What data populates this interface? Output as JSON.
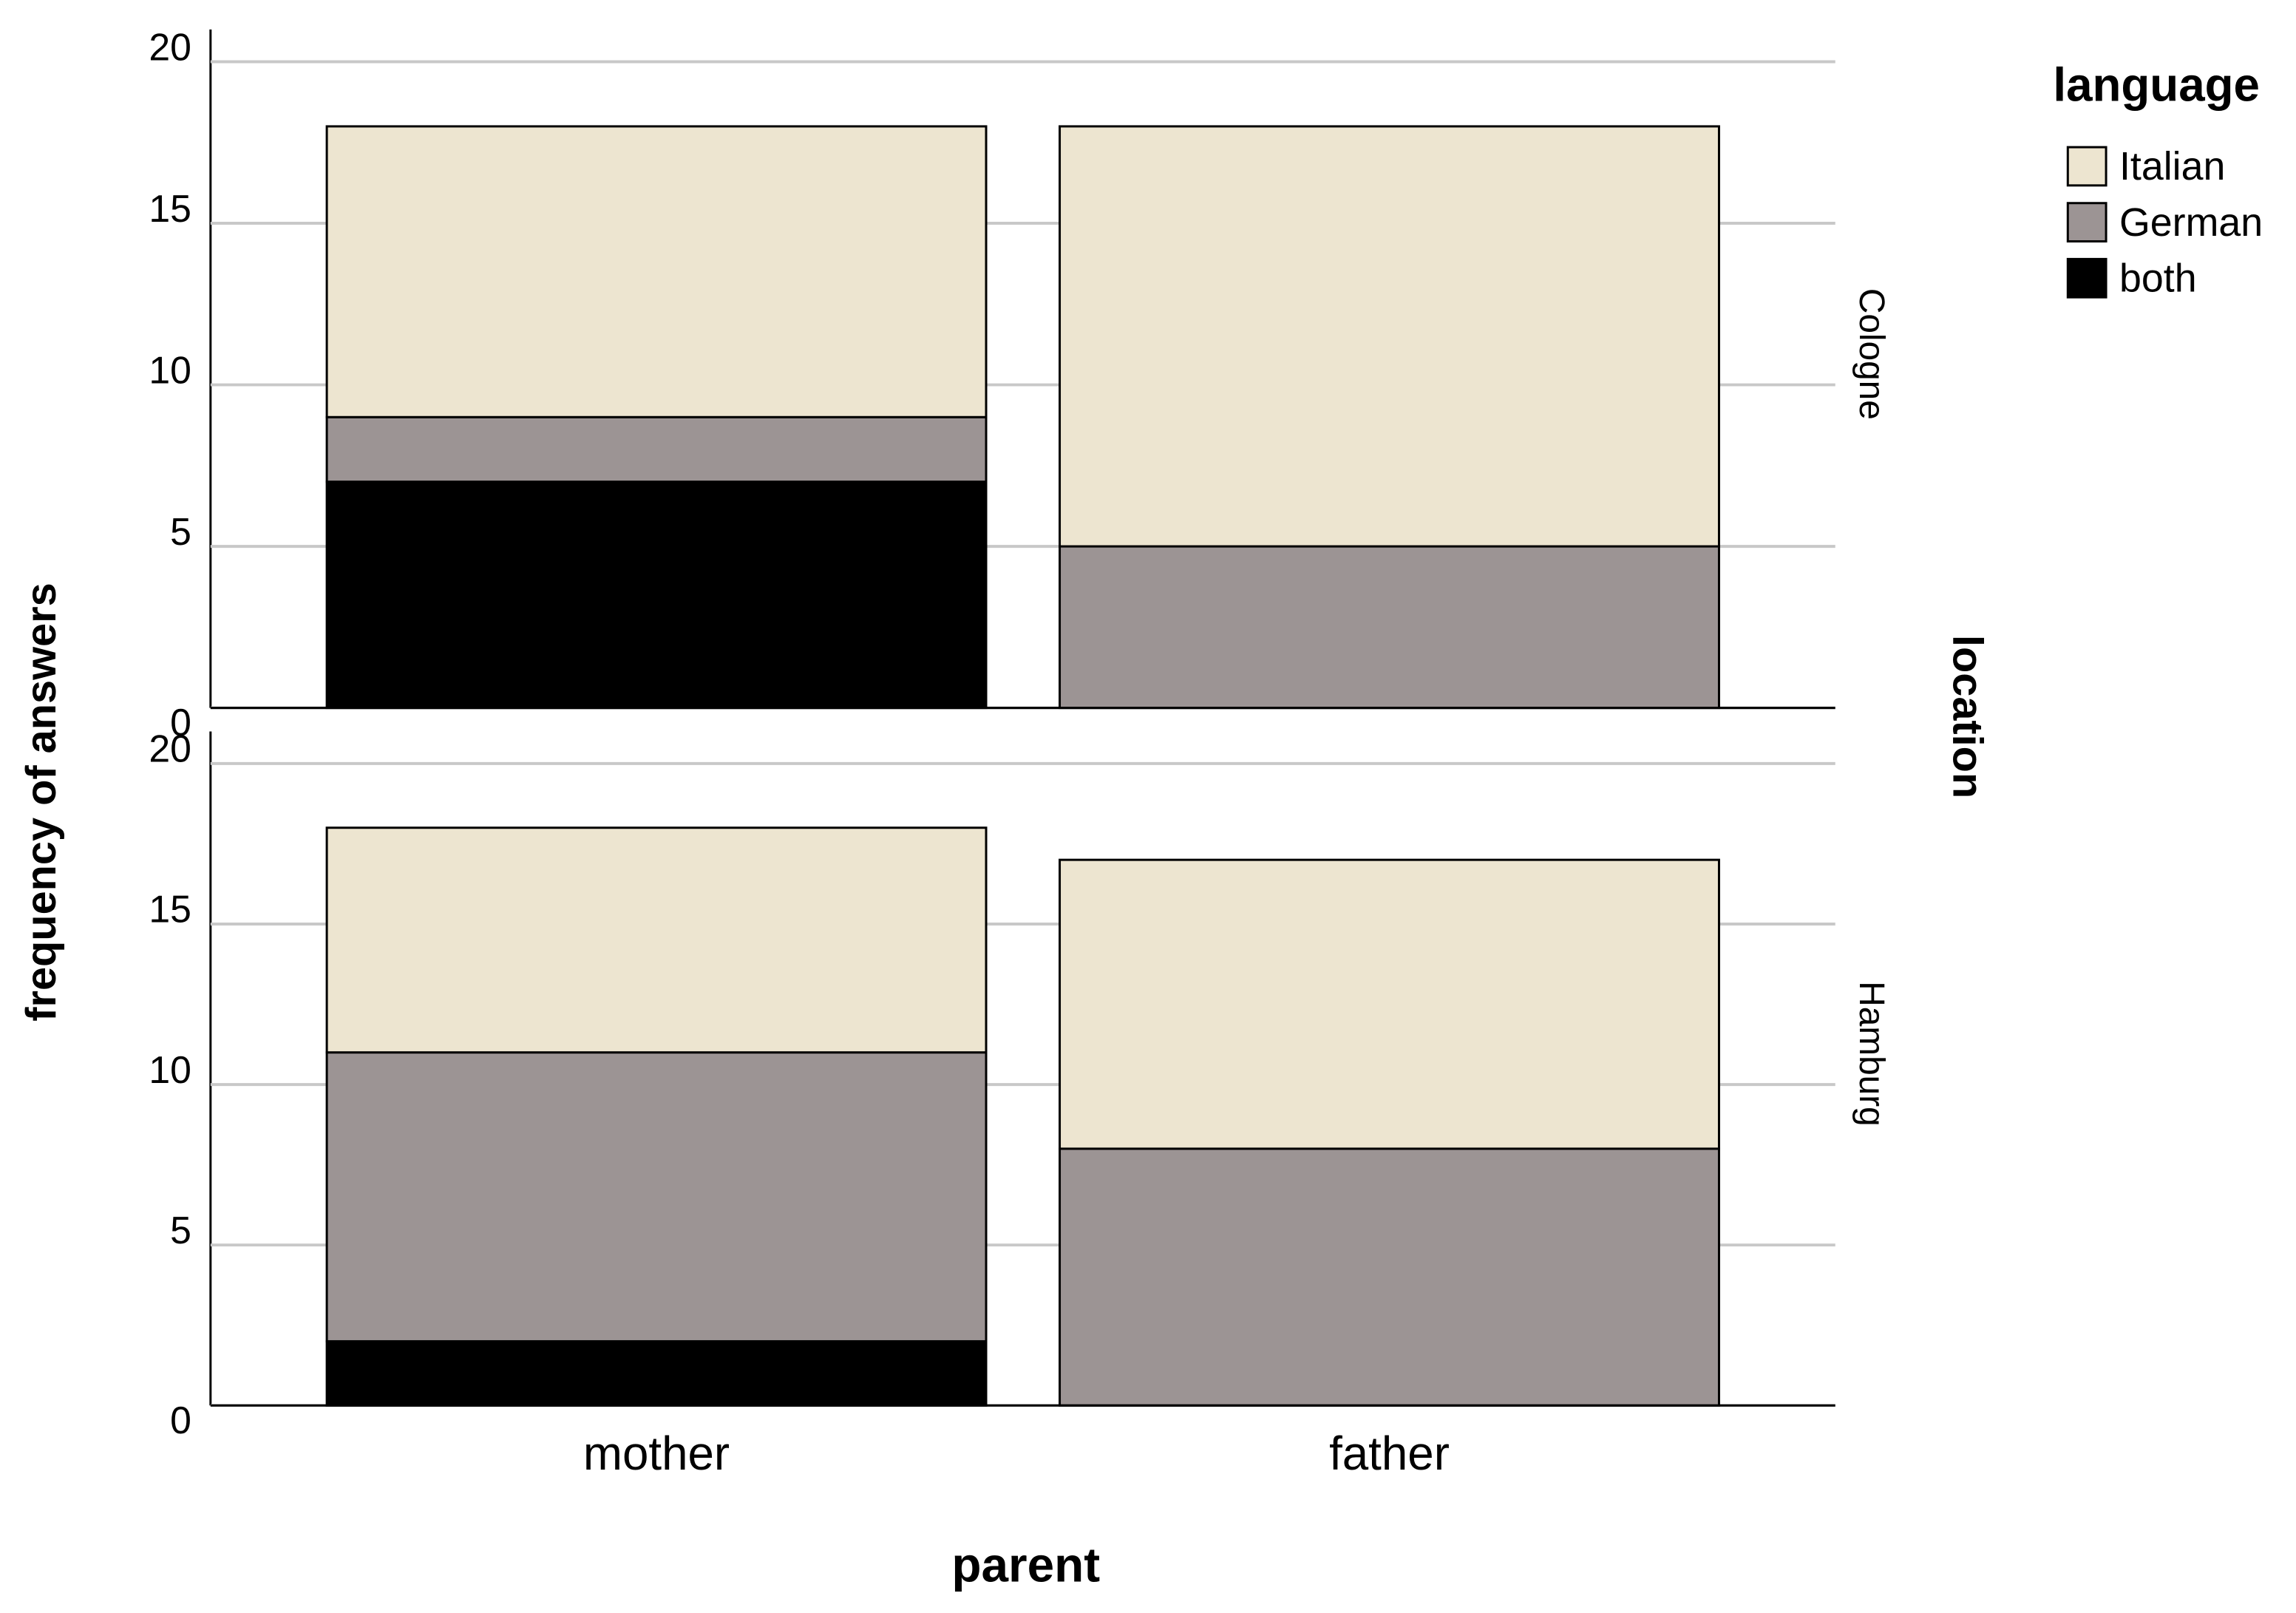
{
  "chart_data": {
    "type": "bar",
    "stacked": true,
    "x_label": "parent",
    "y_label": "frequency of answers",
    "legend_title": "language",
    "facet_label": "location",
    "categories": [
      "mother",
      "father"
    ],
    "panels": [
      {
        "panel": "Cologne",
        "ylim": [
          0,
          21
        ],
        "yticks": [
          0,
          5,
          10,
          15,
          20
        ],
        "grid": true,
        "series": [
          {
            "name": "Italian",
            "color": "#ede5d0",
            "values": [
              9,
              13
            ]
          },
          {
            "name": "German",
            "color": "#9c9494",
            "values": [
              2,
              5
            ]
          },
          {
            "name": "both",
            "color": "#000000",
            "values": [
              7,
              0
            ]
          }
        ]
      },
      {
        "panel": "Hamburg",
        "ylim": [
          0,
          21
        ],
        "yticks": [
          0,
          5,
          10,
          15,
          20
        ],
        "grid": true,
        "series": [
          {
            "name": "Italian",
            "color": "#ede5d0",
            "values": [
              7,
              9
            ]
          },
          {
            "name": "German",
            "color": "#9c9494",
            "values": [
              9,
              8
            ]
          },
          {
            "name": "both",
            "color": "#000000",
            "values": [
              2,
              0
            ]
          }
        ]
      }
    ]
  }
}
